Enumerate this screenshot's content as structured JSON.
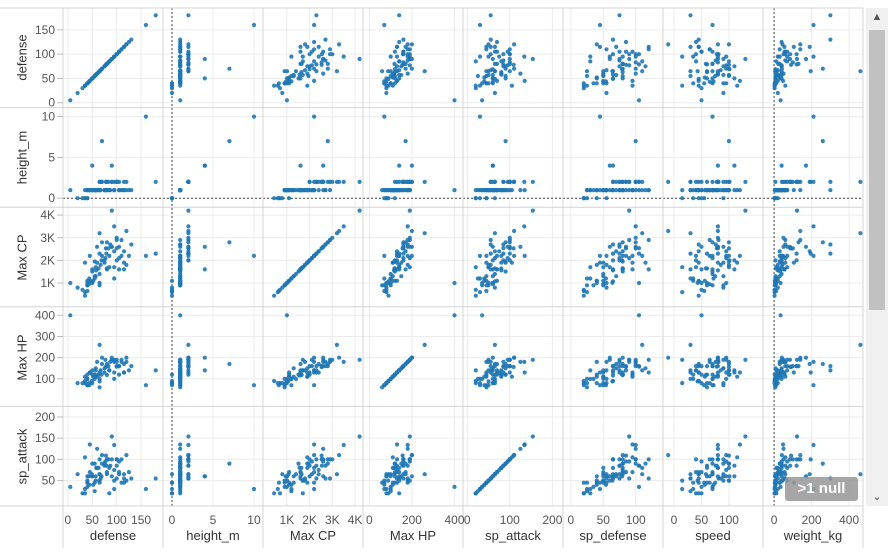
{
  "chart_data": {
    "type": "scatter",
    "title": "",
    "variables": [
      {
        "name": "defense",
        "range": [
          -10,
          195
        ],
        "xticks": [
          0,
          50,
          100,
          150
        ],
        "yticks": [
          0,
          50,
          100,
          150
        ],
        "tick_labels": {
          "0": "0",
          "50": "50",
          "100": "100",
          "150": "150"
        }
      },
      {
        "name": "height_m",
        "range": [
          -1.1,
          11.1
        ],
        "xticks": [
          0,
          5,
          10
        ],
        "yticks": [
          0,
          5,
          10
        ],
        "tick_labels": {
          "0": "0",
          "5": "5",
          "10": "10"
        }
      },
      {
        "name": "Max CP",
        "range": [
          -50,
          4350
        ],
        "xticks": [
          1000,
          2000,
          3000,
          4000
        ],
        "yticks": [
          1000,
          2000,
          3000,
          4000
        ],
        "tick_labels": {
          "1000": "1K",
          "2000": "2K",
          "3000": "3K",
          "4000": "4K"
        }
      },
      {
        "name": "Max HP",
        "range": [
          -30,
          440
        ],
        "xticks": [
          0,
          200,
          400
        ],
        "yticks": [
          100,
          200,
          300,
          400
        ],
        "tick_labels": {
          "0": "0",
          "100": "100",
          "200": "200",
          "300": "300",
          "400": "400"
        }
      },
      {
        "name": "sp_attack",
        "range": [
          -10,
          225
        ],
        "xticks": [
          0,
          100,
          200
        ],
        "yticks": [
          50,
          100,
          150,
          200
        ],
        "tick_labels": {
          "0": "0",
          "50": "50",
          "100": "100",
          "150": "150",
          "200": "200"
        }
      },
      {
        "name": "sp_defense",
        "range": [
          -12,
          142
        ],
        "xticks": [
          0,
          50,
          100
        ],
        "yticks": [],
        "tick_labels": {
          "0": "0",
          "50": "50",
          "100": "100"
        }
      },
      {
        "name": "speed",
        "range": [
          -20,
          162
        ],
        "xticks": [
          0,
          50,
          100
        ],
        "yticks": [],
        "tick_labels": {
          "0": "0",
          "50": "50",
          "100": "100"
        }
      },
      {
        "name": "weight_kg",
        "range": [
          -59,
          474
        ],
        "xticks": [
          0,
          200,
          400
        ],
        "yticks": [],
        "tick_labels": {
          "0": "0",
          "200": "200",
          "400": "400"
        }
      }
    ],
    "row_variables": [
      0,
      1,
      2,
      3,
      4
    ],
    "col_variables": [
      0,
      1,
      2,
      3,
      4,
      5,
      6,
      7
    ],
    "zero_reference_lines": [
      "height_m",
      "weight_kg"
    ],
    "color": "#1f77b4",
    "records": [
      [
        49,
        1,
        1070,
        90,
        65,
        65,
        45,
        7
      ],
      [
        63,
        1,
        1640,
        120,
        80,
        80,
        60,
        13
      ],
      [
        83,
        2,
        2530,
        160,
        100,
        100,
        80,
        100
      ],
      [
        43,
        1,
        950,
        80,
        60,
        50,
        65,
        9
      ],
      [
        58,
        1,
        1560,
        116,
        80,
        65,
        80,
        19
      ],
      [
        78,
        2,
        2530,
        156,
        109,
        85,
        100,
        91
      ],
      [
        65,
        1,
        1010,
        88,
        50,
        64,
        43,
        9
      ],
      [
        80,
        1,
        1650,
        118,
        65,
        80,
        58,
        22
      ],
      [
        100,
        2,
        2540,
        158,
        85,
        105,
        78,
        86
      ],
      [
        35,
        0,
        440,
        90,
        20,
        20,
        45,
        3
      ],
      [
        55,
        1,
        1200,
        100,
        25,
        25,
        30,
        10
      ],
      [
        50,
        1,
        1510,
        120,
        90,
        80,
        70,
        32
      ],
      [
        30,
        0,
        700,
        80,
        20,
        20,
        50,
        3
      ],
      [
        55,
        1,
        1300,
        110,
        45,
        50,
        75,
        30
      ],
      [
        40,
        1,
        900,
        100,
        35,
        35,
        70,
        4
      ],
      [
        57,
        1,
        1700,
        140,
        50,
        50,
        100,
        40
      ],
      [
        44,
        1,
        1200,
        70,
        40,
        54,
        72,
        7
      ],
      [
        69,
        2,
        2000,
        120,
        60,
        79,
        101,
        7
      ],
      [
        40,
        1,
        900,
        70,
        50,
        50,
        90,
        6
      ],
      [
        55,
        1,
        1950,
        120,
        90,
        80,
        100,
        30
      ],
      [
        85,
        1,
        1700,
        140,
        20,
        30,
        40,
        12
      ],
      [
        110,
        1,
        2200,
        180,
        45,
        55,
        65,
        30
      ],
      [
        52,
        1,
        1100,
        110,
        40,
        40,
        56,
        8
      ],
      [
        67,
        1,
        1800,
        140,
        55,
        55,
        85,
        20
      ],
      [
        87,
        1,
        2700,
        180,
        85,
        75,
        76,
        60
      ],
      [
        57,
        1,
        1300,
        150,
        60,
        70,
        90,
        8
      ],
      [
        77,
        1,
        2100,
        190,
        95,
        90,
        95,
        40
      ],
      [
        45,
        1,
        1100,
        130,
        70,
        50,
        45,
        20
      ],
      [
        70,
        2,
        2200,
        200,
        110,
        80,
        95,
        42
      ],
      [
        20,
        0,
        800,
        80,
        65,
        55,
        90,
        20
      ],
      [
        35,
        1,
        1900,
        110,
        105,
        95,
        115,
        60
      ],
      [
        45,
        1,
        2200,
        130,
        135,
        95,
        120,
        48
      ],
      [
        50,
        1,
        1000,
        80,
        60,
        40,
        60,
        9
      ],
      [
        60,
        1,
        1900,
        110,
        80,
        50,
        80,
        40
      ],
      [
        80,
        2,
        2800,
        160,
        100,
        80,
        70,
        130
      ],
      [
        95,
        1,
        1200,
        100,
        30,
        30,
        35,
        20
      ],
      [
        115,
        1,
        1900,
        130,
        45,
        45,
        45,
        105
      ],
      [
        130,
        1,
        2700,
        160,
        55,
        65,
        45,
        300
      ],
      [
        65,
        1,
        1400,
        100,
        65,
        50,
        70,
        40
      ],
      [
        65,
        2,
        2300,
        130,
        100,
        65,
        80,
        195
      ],
      [
        35,
        0,
        600,
        80,
        30,
        25,
        15,
        3
      ],
      [
        40,
        0,
        1100,
        120,
        45,
        40,
        35,
        4
      ],
      [
        80,
        1,
        1600,
        170,
        70,
        80,
        70,
        30
      ],
      [
        95,
        1,
        1700,
        190,
        50,
        60,
        15,
        70
      ],
      [
        90,
        2,
        2600,
        190,
        100,
        75,
        90,
        85
      ],
      [
        100,
        2,
        2000,
        160,
        100,
        65,
        40,
        120
      ],
      [
        120,
        1,
        1800,
        180,
        50,
        40,
        100,
        45
      ],
      [
        105,
        1,
        1600,
        120,
        70,
        95,
        50,
        56
      ],
      [
        160,
        10,
        2200,
        70,
        30,
        45,
        70,
        210
      ],
      [
        180,
        2,
        2300,
        140,
        55,
        75,
        30,
        300
      ],
      [
        65,
        1,
        900,
        60,
        45,
        25,
        60,
        6
      ],
      [
        95,
        1,
        2400,
        130,
        75,
        80,
        95,
        30
      ],
      [
        105,
        2,
        2600,
        160,
        95,
        85,
        50,
        70
      ],
      [
        125,
        1,
        2200,
        140,
        70,
        85,
        40,
        40
      ],
      [
        5,
        1,
        1000,
        400,
        35,
        105,
        50,
        35
      ],
      [
        40,
        1,
        1000,
        100,
        60,
        55,
        95,
        5
      ],
      [
        75,
        1,
        1900,
        150,
        90,
        115,
        90,
        40
      ],
      [
        120,
        2,
        3300,
        200,
        110,
        150,
        80,
        140
      ],
      [
        79,
        2,
        2300,
        160,
        85,
        105,
        60,
        120
      ],
      [
        100,
        2,
        2900,
        180,
        55,
        90,
        81,
        60
      ],
      [
        65,
        2,
        3200,
        260,
        65,
        110,
        30,
        460
      ],
      [
        90,
        2,
        4200,
        190,
        154,
        90,
        130,
        122
      ],
      [
        100,
        2,
        3000,
        190,
        100,
        100,
        80,
        50
      ],
      [
        95,
        2,
        3500,
        180,
        134,
        100,
        80,
        210
      ],
      [
        75,
        1,
        2000,
        130,
        85,
        75,
        110,
        40
      ],
      [
        60,
        1,
        2600,
        180,
        125,
        100,
        80,
        50
      ],
      [
        105,
        1,
        2100,
        160,
        65,
        75,
        70,
        60
      ],
      [
        115,
        1,
        1600,
        130,
        55,
        120,
        30,
        55
      ],
      [
        50,
        4,
        1600,
        140,
        60,
        65,
        110,
        40
      ],
      [
        70,
        7,
        2800,
        170,
        90,
        100,
        100,
        260
      ],
      [
        110,
        1,
        2900,
        190,
        100,
        120,
        65,
        140
      ],
      [
        40,
        0,
        650,
        70,
        45,
        20,
        55,
        11
      ],
      [
        85,
        1,
        2200,
        140,
        80,
        110,
        100,
        70
      ],
      [
        90,
        4,
        2600,
        200,
        60,
        60,
        80,
        170
      ],
      [
        115,
        2,
        2400,
        170,
        65,
        70,
        45,
        190
      ]
    ]
  },
  "labels": {
    "columns": [
      "defense",
      "height_m",
      "Max CP",
      "Max HP",
      "sp_attack",
      "sp_defense",
      "speed",
      "weight_kg"
    ],
    "rows": [
      "defense",
      "height_m",
      "Max CP",
      "Max HP",
      "sp_attack"
    ]
  },
  "null_indicator": ">1 null",
  "scrollbar": {
    "up": "▲",
    "down": "⌄"
  }
}
